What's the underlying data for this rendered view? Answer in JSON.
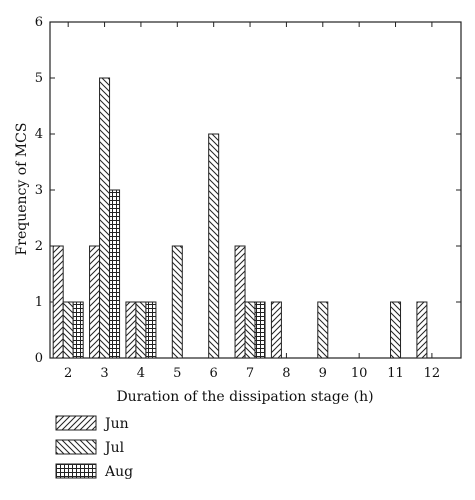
{
  "chart_data": {
    "type": "bar",
    "xlabel": "Duration of the dissipation stage (h)",
    "ylabel": "Frequency of MCS",
    "x": [
      2,
      3,
      4,
      5,
      6,
      7,
      8,
      9,
      10,
      11,
      12
    ],
    "xlim": [
      1.5,
      12.8
    ],
    "ylim": [
      0,
      6
    ],
    "yticks": [
      0,
      1,
      2,
      3,
      4,
      5,
      6
    ],
    "grid": false,
    "legend_position": "bottom-left",
    "series": [
      {
        "name": "Jun",
        "pattern": "forward-diagonal-hatch",
        "values": [
          2,
          2,
          1,
          0,
          0,
          2,
          1,
          0,
          0,
          0,
          1
        ]
      },
      {
        "name": "Jul",
        "pattern": "backward-diagonal-hatch",
        "values": [
          1,
          5,
          1,
          2,
          4,
          1,
          0,
          1,
          0,
          1,
          0
        ]
      },
      {
        "name": "Aug",
        "pattern": "crosshatch-grid",
        "values": [
          1,
          3,
          1,
          0,
          0,
          1,
          0,
          0,
          0,
          0,
          0
        ]
      }
    ]
  }
}
